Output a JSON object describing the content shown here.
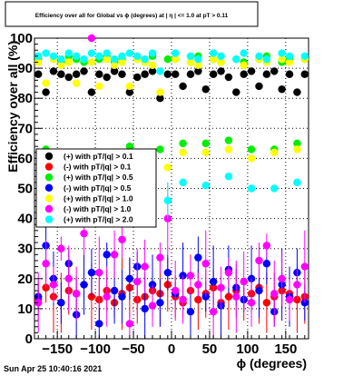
{
  "chart_data": {
    "type": "scatter",
    "title": "Efficiency over all for Global vs ϕ (degrees) at | η | <= 1.0 at pT > 0.11",
    "xlabel": "ϕ (degrees)",
    "ylabel": "Efficiency over all (%)",
    "xlim": [
      -180,
      180
    ],
    "ylim": [
      0,
      100
    ],
    "x_ticks": [
      "−150",
      "−100",
      "−50",
      "0",
      "50",
      "100",
      "150"
    ],
    "x_tick_values": [
      -150,
      -100,
      -50,
      0,
      50,
      100,
      150
    ],
    "y_ticks": [
      "0",
      "10",
      "20",
      "30",
      "40",
      "50",
      "60",
      "70",
      "80",
      "90",
      "100"
    ],
    "y_tick_values": [
      0,
      10,
      20,
      30,
      40,
      50,
      60,
      70,
      80,
      90,
      100
    ],
    "grid": true,
    "legend_position": "middle-left",
    "series": [
      {
        "name": "(+) with pT/|q| > 0.1",
        "color": "#000000",
        "x": [
          -175,
          -165,
          -155,
          -145,
          -135,
          -125,
          -115,
          -105,
          -95,
          -85,
          -75,
          -65,
          -55,
          -45,
          -35,
          -25,
          -15,
          -5,
          5,
          15,
          25,
          35,
          45,
          55,
          65,
          75,
          85,
          95,
          105,
          115,
          125,
          135,
          145,
          155,
          165,
          175
        ],
        "y": [
          88,
          82,
          89,
          88,
          87,
          88,
          89,
          82,
          88,
          87,
          89,
          88,
          82,
          87,
          88,
          89,
          80,
          88,
          88,
          84,
          88,
          89,
          83,
          88,
          89,
          87,
          82,
          88,
          89,
          84,
          88,
          89,
          83,
          88,
          82,
          88
        ]
      },
      {
        "name": "(-) with pT/|q| > 0.1",
        "color": "#ff0000",
        "x": [
          -175,
          -165,
          -155,
          -145,
          -135,
          -125,
          -115,
          -105,
          -95,
          -85,
          -75,
          -65,
          -55,
          -45,
          -35,
          -25,
          -15,
          -5,
          5,
          15,
          25,
          35,
          45,
          55,
          65,
          75,
          85,
          95,
          105,
          115,
          125,
          135,
          145,
          155,
          165,
          175
        ],
        "y": [
          13,
          17,
          14,
          12,
          16,
          15,
          18,
          14,
          13,
          16,
          12,
          15,
          17,
          13,
          14,
          16,
          15,
          18,
          14,
          12,
          16,
          13,
          15,
          17,
          12,
          14,
          16,
          13,
          15,
          17,
          12,
          14,
          16,
          15,
          13,
          14
        ]
      },
      {
        "name": "(+) with pT/|q| > 0.5",
        "color": "#00ee00",
        "x": [
          -175,
          -165,
          -155,
          -145,
          -135,
          -125,
          -115,
          -105,
          -95,
          -85,
          -75,
          -65,
          -55,
          -45,
          -35,
          -25,
          -15,
          -5,
          5,
          15,
          25,
          35,
          45,
          55,
          65,
          75,
          85,
          95,
          105,
          115,
          125,
          135,
          145,
          155,
          165,
          175
        ],
        "y": [
          93,
          63,
          93,
          92,
          94,
          93,
          92,
          62,
          93,
          94,
          92,
          93,
          64,
          93,
          92,
          94,
          63,
          93,
          93,
          65,
          92,
          94,
          65,
          93,
          92,
          66,
          93,
          92,
          63,
          93,
          94,
          63,
          92,
          93,
          65,
          93
        ]
      },
      {
        "name": "(-) with pT/|q| > 0.5",
        "color": "#0000ff",
        "x": [
          -175,
          -165,
          -155,
          -145,
          -135,
          -125,
          -115,
          -105,
          -95,
          -85,
          -75,
          -65,
          -55,
          -45,
          -35,
          -25,
          -15,
          -5,
          5,
          15,
          25,
          35,
          45,
          55,
          65,
          75,
          85,
          95,
          105,
          115,
          125,
          135,
          145,
          155,
          165,
          175
        ],
        "y": [
          14,
          31,
          20,
          12,
          25,
          8,
          18,
          22,
          5,
          28,
          16,
          14,
          20,
          24,
          10,
          18,
          12,
          22,
          15,
          21,
          9,
          27,
          14,
          19,
          11,
          23,
          17,
          13,
          20,
          16,
          25,
          9,
          18,
          14,
          22,
          12
        ]
      },
      {
        "name": "(+) with pT/|q| > 1.0",
        "color": "#ffff00",
        "x": [
          -175,
          -165,
          -155,
          -145,
          -135,
          -125,
          -115,
          -105,
          -95,
          -85,
          -75,
          -65,
          -55,
          -45,
          -35,
          -25,
          -15,
          -5,
          5,
          15,
          25,
          35,
          45,
          55,
          65,
          75,
          85,
          95,
          105,
          115,
          125,
          135,
          145,
          155,
          165,
          175
        ],
        "y": [
          92,
          85,
          93,
          91,
          92,
          85,
          93,
          92,
          84,
          93,
          91,
          92,
          84,
          93,
          92,
          91,
          82,
          57,
          93,
          62,
          92,
          91,
          62,
          93,
          92,
          63,
          93,
          91,
          60,
          93,
          92,
          62,
          93,
          92,
          63,
          93
        ]
      },
      {
        "name": "(-) with pT/|q| > 1.0",
        "color": "#ff00ff",
        "x": [
          -175,
          -165,
          -155,
          -145,
          -135,
          -125,
          -115,
          -105,
          -95,
          -85,
          -75,
          -65,
          -55,
          -45,
          -35,
          -25,
          -15,
          -5,
          5,
          15,
          25,
          35,
          45,
          55,
          65,
          75,
          85,
          95,
          105,
          115,
          125,
          135,
          145,
          155,
          165,
          175
        ],
        "y": [
          12,
          25,
          18,
          30,
          20,
          15,
          35,
          100,
          22,
          14,
          28,
          33,
          5,
          19,
          24,
          11,
          27,
          40,
          16,
          13,
          21,
          18,
          25,
          9,
          17,
          22,
          14,
          19,
          12,
          26,
          31,
          15,
          20,
          13,
          18,
          24
        ]
      },
      {
        "name": "(+) with pT/|q| > 2.0",
        "color": "#00ffff",
        "x": [
          -175,
          -165,
          -155,
          -145,
          -135,
          -125,
          -115,
          -105,
          -95,
          -85,
          -75,
          -65,
          -55,
          -45,
          -35,
          -25,
          -15,
          -5,
          5,
          15,
          25,
          35,
          45,
          55,
          65,
          75,
          85,
          95,
          105,
          115,
          125,
          135,
          145,
          155,
          165,
          175
        ],
        "y": [
          94,
          95,
          94,
          93,
          95,
          94,
          93,
          95,
          94,
          95,
          93,
          94,
          95,
          94,
          93,
          95,
          89,
          46,
          95,
          52,
          94,
          93,
          51,
          95,
          94,
          54,
          93,
          95,
          50,
          94,
          93,
          50,
          95,
          94,
          52,
          94
        ]
      }
    ],
    "footer_timestamp": "Sun Apr 25 10:40:16 2021"
  }
}
